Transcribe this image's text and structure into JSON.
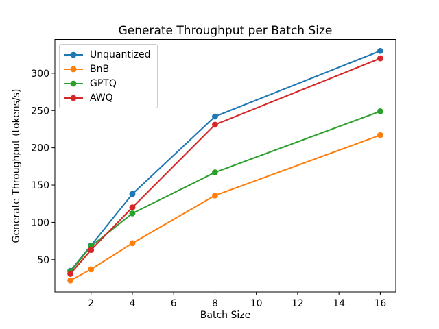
{
  "chart_data": {
    "type": "line",
    "title": "Generate Throughput per Batch Size",
    "xlabel": "Batch Size",
    "ylabel": "Generate Throughput (tokens/s)",
    "x": [
      1,
      2,
      4,
      8,
      16
    ],
    "series": [
      {
        "name": "Unquantized",
        "color": "#1f77b4",
        "values": [
          35,
          69,
          138,
          242,
          330
        ]
      },
      {
        "name": "BnB",
        "color": "#ff7f0e",
        "values": [
          22,
          37,
          72,
          136,
          217
        ]
      },
      {
        "name": "GPTQ",
        "color": "#2ca02c",
        "values": [
          34,
          68,
          112,
          167,
          249
        ]
      },
      {
        "name": "AWQ",
        "color": "#d62728",
        "values": [
          31,
          63,
          120,
          231,
          320
        ]
      }
    ],
    "xticks": [
      2,
      4,
      6,
      8,
      10,
      12,
      14,
      16
    ],
    "yticks": [
      50,
      100,
      150,
      200,
      250,
      300
    ],
    "xlim": [
      0.25,
      16.75
    ],
    "ylim": [
      6.6,
      345.4
    ],
    "grid": false,
    "marker": "circle",
    "legend_position": "upper left",
    "axis_color": "#000000",
    "legend_border_color": "#cccccc",
    "background_color": "#ffffff"
  }
}
